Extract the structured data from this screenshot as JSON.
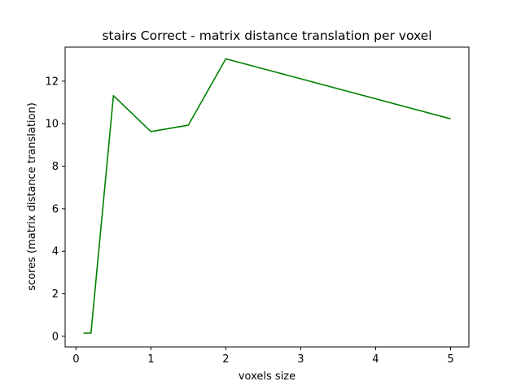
{
  "chart_data": {
    "type": "line",
    "title": "stairs Correct - matrix distance translation per voxel",
    "xlabel": "voxels size",
    "ylabel": "scores (matrix distance translation)",
    "xlim": [
      -0.145,
      5.245
    ],
    "ylim": [
      -0.5,
      13.6
    ],
    "xticks": [
      0,
      1,
      2,
      3,
      4,
      5
    ],
    "yticks": [
      0,
      2,
      4,
      6,
      8,
      10,
      12
    ],
    "grid": false,
    "series": [
      {
        "color": "#008000",
        "x": [
          0.1,
          0.2,
          0.5,
          1.0,
          1.5,
          2.0,
          5.0
        ],
        "y": [
          0.15,
          0.15,
          11.32,
          9.63,
          9.93,
          13.05,
          10.23
        ]
      }
    ]
  }
}
